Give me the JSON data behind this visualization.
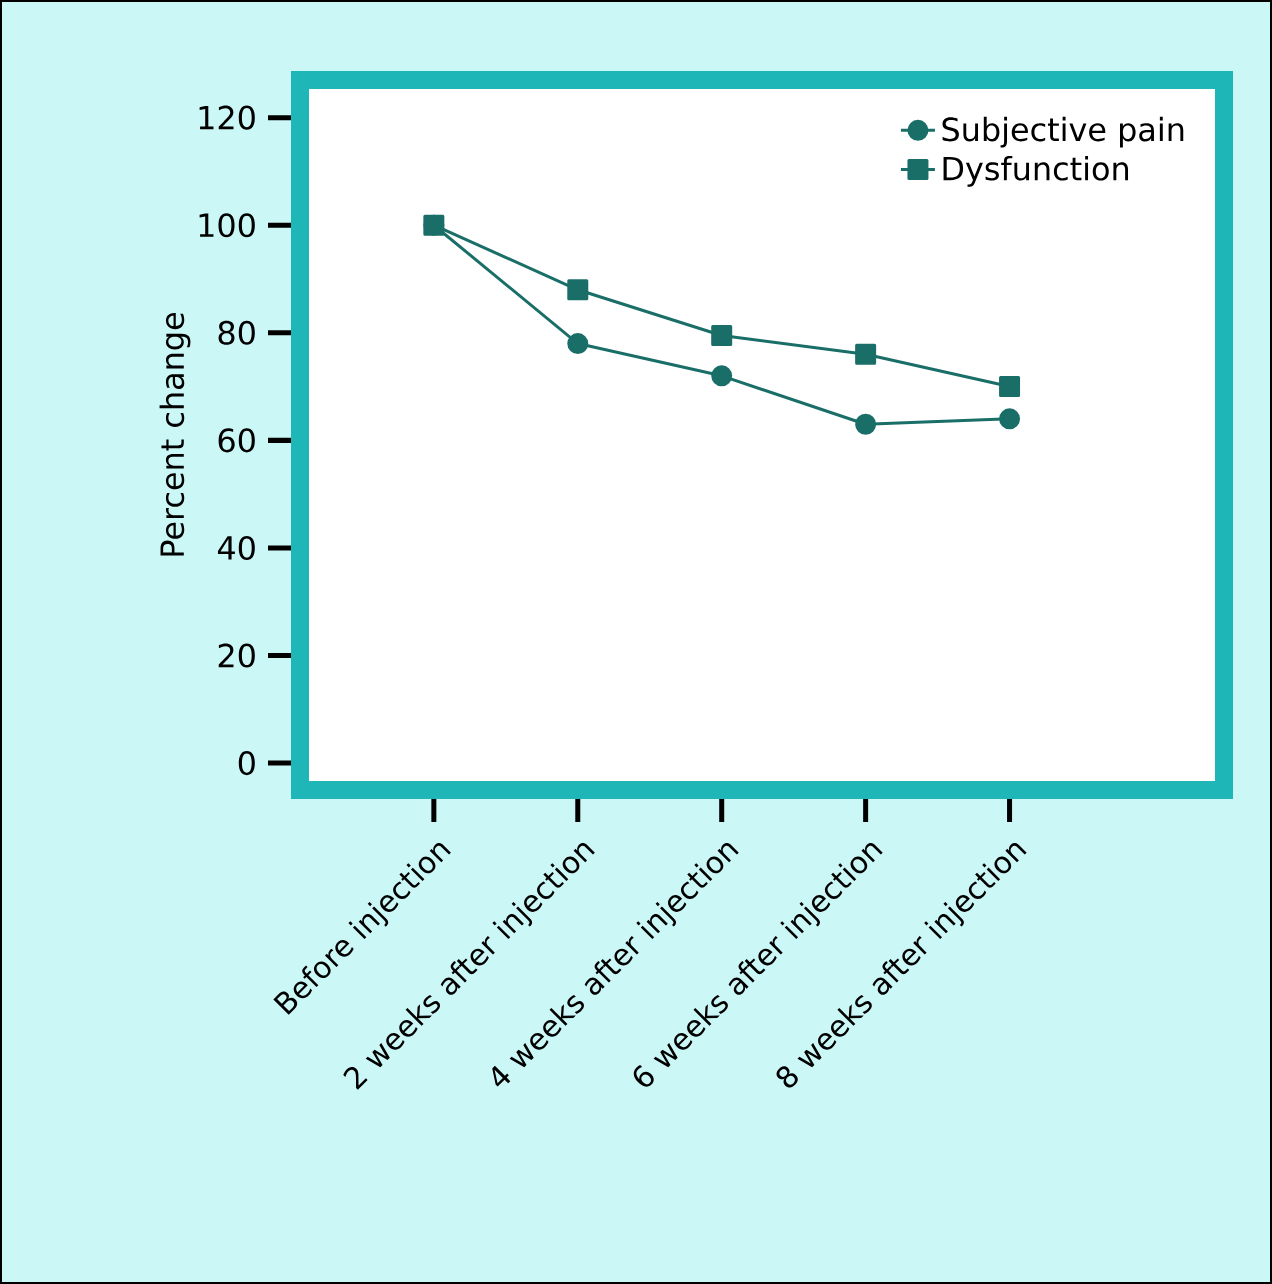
{
  "chart_data": {
    "type": "line",
    "ylabel": "Percent change",
    "categories": [
      "Before injection",
      "2 weeks after injection",
      "4 weeks after injection",
      "6 weeks after injection",
      "8 weeks after injection"
    ],
    "series": [
      {
        "name": "Subjective pain",
        "color": "#1a6e68",
        "marker": "circle",
        "values": [
          100,
          78,
          72,
          63,
          64
        ]
      },
      {
        "name": "Dysfunction",
        "color": "#1a6e68",
        "marker": "square",
        "values": [
          100,
          88,
          79.5,
          76,
          70
        ]
      }
    ],
    "ylim": [
      -5,
      127
    ],
    "yticks": [
      0,
      20,
      40,
      60,
      80,
      100,
      120
    ],
    "grid": false,
    "legend": "top right",
    "line_style": "solid"
  }
}
